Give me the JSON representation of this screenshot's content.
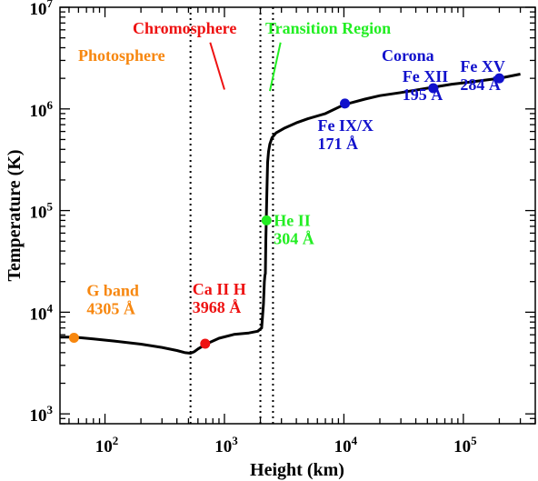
{
  "chart_data": {
    "type": "line",
    "xlabel": "Height (km)",
    "ylabel": "Temperature (K)",
    "x_scale": "log",
    "y_scale": "log",
    "xlim": [
      42,
      400000
    ],
    "ylim": [
      800,
      10000000
    ],
    "x_ticks": [
      {
        "value": 100,
        "base": "10",
        "exp": "2"
      },
      {
        "value": 1000,
        "base": "10",
        "exp": "3"
      },
      {
        "value": 10000,
        "base": "10",
        "exp": "4"
      },
      {
        "value": 100000,
        "base": "10",
        "exp": "5"
      }
    ],
    "y_ticks": [
      {
        "value": 1000,
        "base": "10",
        "exp": "3"
      },
      {
        "value": 10000,
        "base": "10",
        "exp": "4"
      },
      {
        "value": 100000,
        "base": "10",
        "exp": "5"
      },
      {
        "value": 1000000,
        "base": "10",
        "exp": "6"
      },
      {
        "value": 10000000,
        "base": "10",
        "exp": "7"
      }
    ],
    "series": [
      {
        "color": "#000000",
        "x": [
          42,
          55,
          80,
          120,
          200,
          300,
          400,
          470,
          520,
          560,
          600,
          700,
          900,
          1200,
          1600,
          1900,
          2050,
          2120,
          2160,
          2180,
          2200,
          2220,
          2240,
          2260,
          2280,
          2300,
          2340,
          2400,
          2500,
          2700,
          3200,
          4000,
          5000,
          7000,
          10000,
          15000,
          20000,
          30000,
          50000,
          80000,
          120000,
          200000,
          300000
        ],
        "y": [
          5700,
          5700,
          5450,
          5200,
          4850,
          4500,
          4200,
          4000,
          3950,
          4100,
          4350,
          4850,
          5550,
          6050,
          6250,
          6500,
          7000,
          12000,
          20000,
          23000,
          24000,
          50000,
          80000,
          130000,
          200000,
          300000,
          380000,
          450000,
          520000,
          580000,
          650000,
          730000,
          800000,
          900000,
          1100000,
          1250000,
          1350000,
          1450000,
          1600000,
          1750000,
          1850000,
          2000000,
          2200000
        ]
      }
    ],
    "vlines": [
      520,
      2000,
      2550
    ],
    "points": [
      {
        "x": 55,
        "y": 5600,
        "color": "#f7870f",
        "lines": [
          "G band",
          "4305 Å"
        ]
      },
      {
        "x": 690,
        "y": 4900,
        "color": "#ee1111",
        "lines": [
          "Ca II H",
          "3968 Å"
        ]
      },
      {
        "x": 2250,
        "y": 80000,
        "color": "#22ee22",
        "lines": [
          "He II",
          "304 Å"
        ]
      },
      {
        "x": 10200,
        "y": 1130000,
        "color": "#1111cc",
        "lines": [
          "Fe IX/X",
          "171 Å"
        ]
      },
      {
        "x": 56000,
        "y": 1600000,
        "color": "#1111cc",
        "lines": [
          "Fe XII",
          "195 Å"
        ]
      },
      {
        "x": 200000,
        "y": 2000000,
        "color": "#1111cc",
        "lines": [
          "Fe XV",
          "284 Å"
        ]
      }
    ],
    "regions": [
      {
        "label": "Photosphere",
        "color": "#f7870f"
      },
      {
        "label": "Chromosphere",
        "color": "#ee1111"
      },
      {
        "label": "Transition Region",
        "color": "#22ee22"
      },
      {
        "label": "Corona",
        "color": "#1111cc"
      }
    ],
    "pointers": [
      {
        "color": "#ee1111",
        "x1": 760,
        "y1": 4500000,
        "x2": 1000,
        "y2": 1550000
      },
      {
        "color": "#22ee22",
        "x1": 2950,
        "y1": 4500000,
        "x2": 2400,
        "y2": 1500000
      }
    ]
  }
}
